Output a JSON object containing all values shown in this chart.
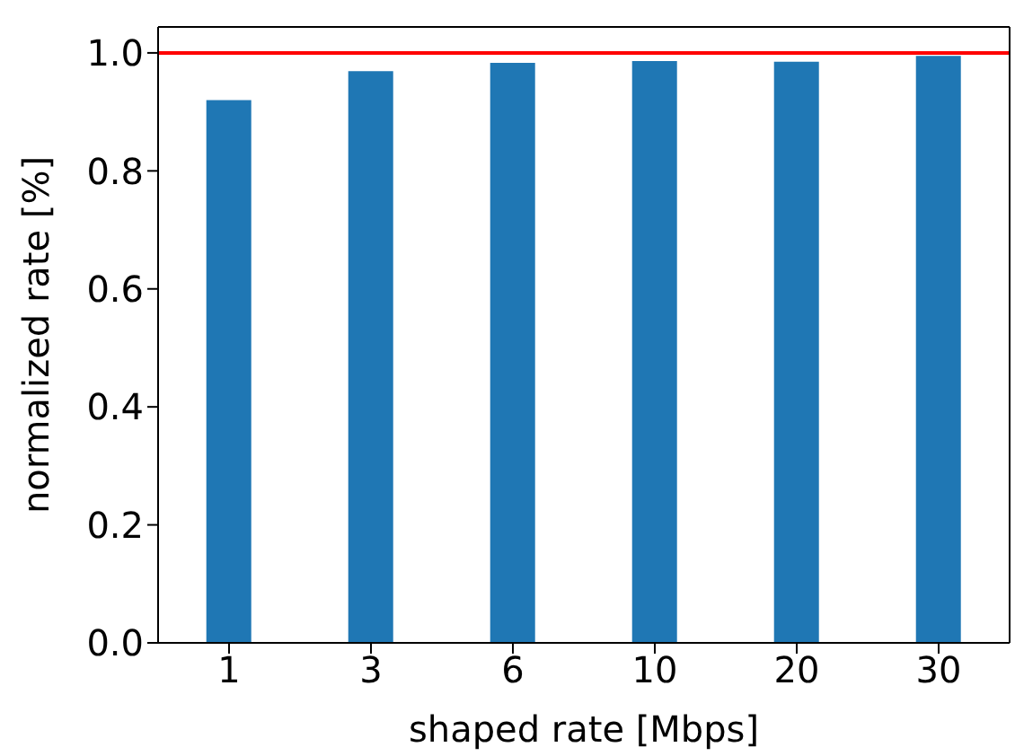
{
  "chart_data": {
    "type": "bar",
    "xlabel": "shaped rate [Mbps]",
    "ylabel": "normalized rate [%]",
    "categories": [
      "1",
      "3",
      "6",
      "10",
      "20",
      "30"
    ],
    "values": [
      0.92,
      0.969,
      0.983,
      0.986,
      0.985,
      0.995
    ],
    "color": "#1f77b4",
    "ylim": [
      0,
      1.044
    ],
    "yticks": [
      {
        "value": 0,
        "label": "0.0"
      },
      0.2,
      0.4,
      0.6,
      0.8,
      {
        "value": 1,
        "label": "1.0"
      }
    ],
    "grid": false,
    "legend": false,
    "ref_lines": [
      {
        "axis": "y",
        "value": 1.0,
        "color": "#ff0000"
      }
    ]
  }
}
